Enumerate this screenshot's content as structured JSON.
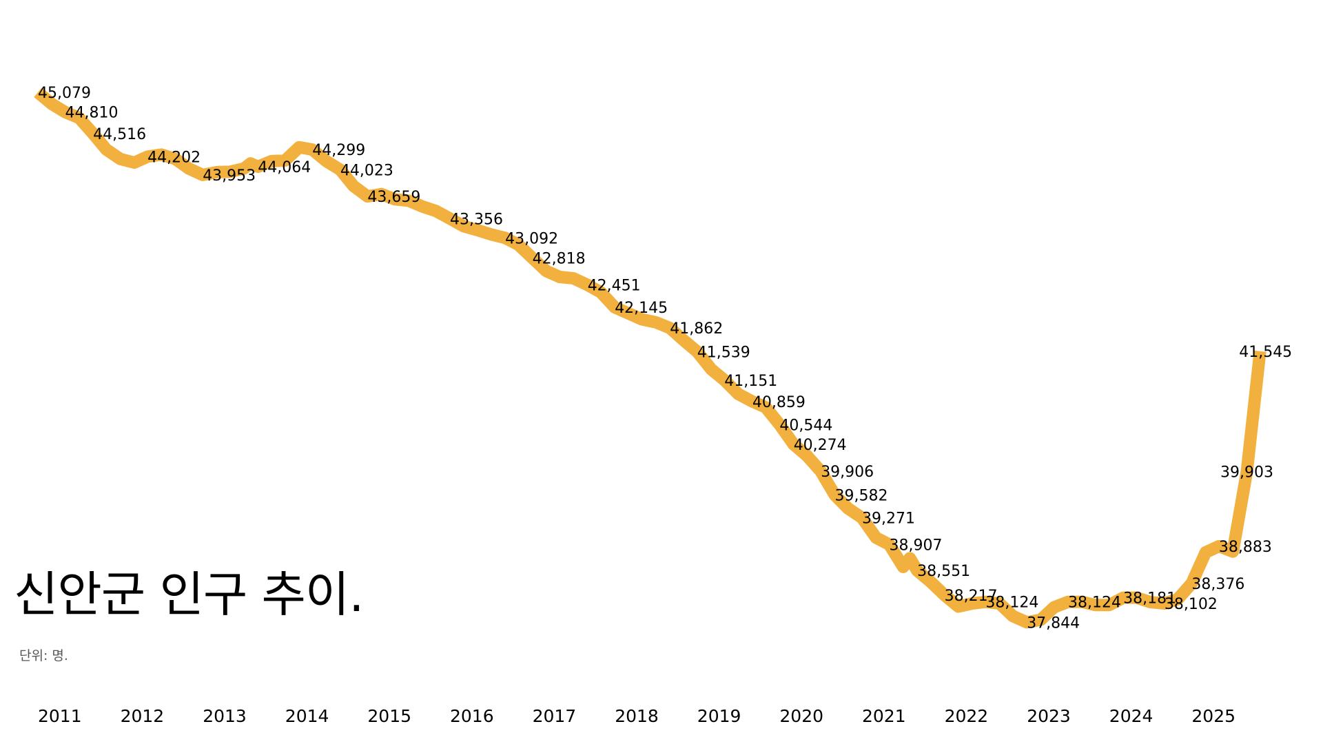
{
  "title": "신안군 인구 추이.",
  "subtitle": "단위: 명.",
  "colors": {
    "line": "#F2B13E",
    "text": "#000000"
  },
  "chart_data": {
    "type": "line",
    "title": "신안군 인구 추이.",
    "unit": "명",
    "grid": false,
    "legend": "none",
    "xlim": [
      2011.0,
      2026.0
    ],
    "ylim": [
      37500,
      45400
    ],
    "x_ticks": [
      "2011",
      "2012",
      "2013",
      "2014",
      "2015",
      "2016",
      "2017",
      "2018",
      "2019",
      "2020",
      "2021",
      "2022",
      "2023",
      "2024",
      "2025"
    ],
    "series": [
      {
        "points": [
          [
            2011.0,
            45079
          ],
          [
            2011.17,
            44920
          ],
          [
            2011.33,
            44810
          ],
          [
            2011.5,
            44730
          ],
          [
            2011.67,
            44516
          ],
          [
            2011.83,
            44300
          ],
          [
            2012.0,
            44170
          ],
          [
            2012.17,
            44120
          ],
          [
            2012.33,
            44202
          ],
          [
            2012.5,
            44230
          ],
          [
            2012.67,
            44170
          ],
          [
            2012.83,
            44040
          ],
          [
            2013.0,
            43953
          ],
          [
            2013.17,
            43990
          ],
          [
            2013.33,
            43995
          ],
          [
            2013.5,
            44040
          ],
          [
            2013.58,
            44110
          ],
          [
            2013.67,
            44064
          ],
          [
            2013.83,
            44140
          ],
          [
            2014.0,
            44150
          ],
          [
            2014.17,
            44330
          ],
          [
            2014.33,
            44299
          ],
          [
            2014.5,
            44140
          ],
          [
            2014.67,
            44023
          ],
          [
            2014.83,
            43800
          ],
          [
            2015.0,
            43659
          ],
          [
            2015.17,
            43690
          ],
          [
            2015.33,
            43620
          ],
          [
            2015.5,
            43600
          ],
          [
            2015.67,
            43520
          ],
          [
            2015.83,
            43460
          ],
          [
            2016.0,
            43356
          ],
          [
            2016.17,
            43250
          ],
          [
            2016.33,
            43200
          ],
          [
            2016.5,
            43140
          ],
          [
            2016.67,
            43092
          ],
          [
            2016.83,
            43000
          ],
          [
            2017.0,
            42818
          ],
          [
            2017.17,
            42640
          ],
          [
            2017.33,
            42560
          ],
          [
            2017.5,
            42540
          ],
          [
            2017.67,
            42451
          ],
          [
            2017.83,
            42350
          ],
          [
            2018.0,
            42145
          ],
          [
            2018.17,
            42060
          ],
          [
            2018.33,
            41980
          ],
          [
            2018.5,
            41940
          ],
          [
            2018.67,
            41862
          ],
          [
            2018.83,
            41700
          ],
          [
            2019.0,
            41539
          ],
          [
            2019.17,
            41300
          ],
          [
            2019.33,
            41151
          ],
          [
            2019.5,
            40960
          ],
          [
            2019.67,
            40859
          ],
          [
            2019.83,
            40780
          ],
          [
            2020.0,
            40544
          ],
          [
            2020.17,
            40274
          ],
          [
            2020.33,
            40120
          ],
          [
            2020.5,
            39906
          ],
          [
            2020.67,
            39582
          ],
          [
            2020.83,
            39400
          ],
          [
            2021.0,
            39271
          ],
          [
            2021.17,
            39000
          ],
          [
            2021.33,
            38907
          ],
          [
            2021.5,
            38600
          ],
          [
            2021.58,
            38720
          ],
          [
            2021.67,
            38551
          ],
          [
            2021.83,
            38400
          ],
          [
            2022.0,
            38217
          ],
          [
            2022.17,
            38060
          ],
          [
            2022.33,
            38100
          ],
          [
            2022.5,
            38124
          ],
          [
            2022.67,
            38100
          ],
          [
            2022.83,
            37930
          ],
          [
            2023.0,
            37844
          ],
          [
            2023.17,
            37880
          ],
          [
            2023.33,
            38050
          ],
          [
            2023.5,
            38124
          ],
          [
            2023.67,
            38124
          ],
          [
            2023.83,
            38080
          ],
          [
            2024.0,
            38080
          ],
          [
            2024.17,
            38181
          ],
          [
            2024.33,
            38181
          ],
          [
            2024.5,
            38120
          ],
          [
            2024.67,
            38102
          ],
          [
            2024.83,
            38160
          ],
          [
            2025.0,
            38376
          ],
          [
            2025.17,
            38800
          ],
          [
            2025.33,
            38883
          ],
          [
            2025.5,
            38810
          ],
          [
            2025.67,
            39903
          ],
          [
            2025.83,
            41545
          ]
        ]
      }
    ],
    "labels": [
      {
        "x": 2011.0,
        "y": 45079,
        "text": "45,079"
      },
      {
        "x": 2011.33,
        "y": 44810,
        "text": "44,810"
      },
      {
        "x": 2011.67,
        "y": 44516,
        "text": "44,516"
      },
      {
        "x": 2012.33,
        "y": 44202,
        "text": "44,202"
      },
      {
        "x": 2013.0,
        "y": 43953,
        "text": "43,953"
      },
      {
        "x": 2013.67,
        "y": 44064,
        "text": "44,064"
      },
      {
        "x": 2014.33,
        "y": 44299,
        "text": "44,299"
      },
      {
        "x": 2014.67,
        "y": 44023,
        "text": "44,023"
      },
      {
        "x": 2015.0,
        "y": 43659,
        "text": "43,659"
      },
      {
        "x": 2016.0,
        "y": 43356,
        "text": "43,356"
      },
      {
        "x": 2016.67,
        "y": 43092,
        "text": "43,092"
      },
      {
        "x": 2017.0,
        "y": 42818,
        "text": "42,818"
      },
      {
        "x": 2017.67,
        "y": 42451,
        "text": "42,451"
      },
      {
        "x": 2018.0,
        "y": 42145,
        "text": "42,145"
      },
      {
        "x": 2018.67,
        "y": 41862,
        "text": "41,862"
      },
      {
        "x": 2019.0,
        "y": 41539,
        "text": "41,539"
      },
      {
        "x": 2019.33,
        "y": 41151,
        "text": "41,151"
      },
      {
        "x": 2019.67,
        "y": 40859,
        "text": "40,859"
      },
      {
        "x": 2020.0,
        "y": 40544,
        "text": "40,544"
      },
      {
        "x": 2020.17,
        "y": 40274,
        "text": "40,274"
      },
      {
        "x": 2020.5,
        "y": 39906,
        "text": "39,906"
      },
      {
        "x": 2020.67,
        "y": 39582,
        "text": "39,582"
      },
      {
        "x": 2021.0,
        "y": 39271,
        "text": "39,271"
      },
      {
        "x": 2021.33,
        "y": 38907,
        "text": "38,907"
      },
      {
        "x": 2021.67,
        "y": 38551,
        "text": "38,551"
      },
      {
        "x": 2022.0,
        "y": 38217,
        "text": "38,217"
      },
      {
        "x": 2022.5,
        "y": 38124,
        "text": "38,124"
      },
      {
        "x": 2023.0,
        "y": 37844,
        "text": "37,844"
      },
      {
        "x": 2023.5,
        "y": 38124,
        "text": "38,124"
      },
      {
        "x": 2024.17,
        "y": 38181,
        "text": "38,181"
      },
      {
        "x": 2024.67,
        "y": 38102,
        "text": "38,102"
      },
      {
        "x": 2025.0,
        "y": 38376,
        "text": "38,376"
      },
      {
        "x": 2025.33,
        "y": 38883,
        "text": "38,883"
      },
      {
        "x": 2025.67,
        "y": 39903,
        "text": "39,903"
      },
      {
        "x": 2025.83,
        "y": 41545,
        "text": "41,545"
      }
    ]
  }
}
